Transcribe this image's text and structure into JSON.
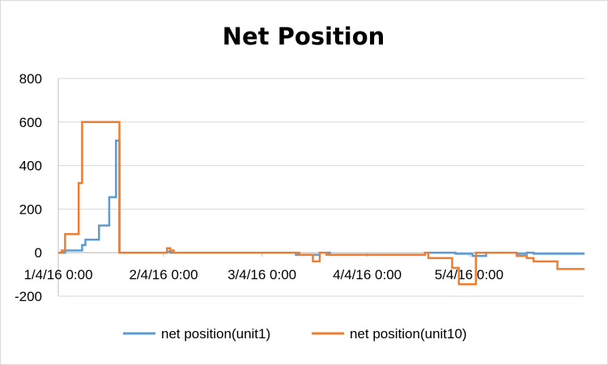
{
  "chart_data": {
    "type": "line",
    "title": "Net Position",
    "xlabel": "",
    "ylabel": "",
    "xlim": [
      "2016-01-04",
      "2016-06-07"
    ],
    "ylim": [
      -200,
      800
    ],
    "y_ticks": [
      -200,
      0,
      200,
      400,
      600,
      800
    ],
    "x_ticks": [
      {
        "date": "2016-01-04",
        "label": "1/4/16 0:00"
      },
      {
        "date": "2016-02-04",
        "label": "2/4/16 0:00"
      },
      {
        "date": "2016-03-04",
        "label": "3/4/16 0:00"
      },
      {
        "date": "2016-04-04",
        "label": "4/4/16 0:00"
      },
      {
        "date": "2016-05-04",
        "label": "5/4/16 0:00"
      }
    ],
    "grid": true,
    "legend_position": "bottom",
    "series": [
      {
        "name": "net position(unit1)",
        "color": "#5b9bd5",
        "step": true,
        "x": [
          "2016-01-04",
          "2016-01-06",
          "2016-01-11",
          "2016-01-12",
          "2016-01-13",
          "2016-01-16",
          "2016-01-19",
          "2016-01-21",
          "2016-01-22",
          "2016-01-23",
          "2016-02-05",
          "2016-02-06",
          "2016-03-10",
          "2016-03-14",
          "2016-03-21",
          "2016-03-24",
          "2016-04-21",
          "2016-04-30",
          "2016-05-05",
          "2016-05-09",
          "2016-05-18",
          "2016-05-21",
          "2016-05-23",
          "2016-06-07"
        ],
        "y": [
          0,
          10,
          35,
          60,
          60,
          125,
          255,
          515,
          0,
          0,
          5,
          0,
          0,
          -10,
          0,
          -10,
          0,
          -5,
          -15,
          0,
          -5,
          0,
          -5,
          -5
        ]
      },
      {
        "name": "net position(unit10)",
        "color": "#ed7d31",
        "step": true,
        "x": [
          "2016-01-04",
          "2016-01-05",
          "2016-01-06",
          "2016-01-10",
          "2016-01-11",
          "2016-01-21",
          "2016-01-22",
          "2016-02-05",
          "2016-02-06",
          "2016-02-07",
          "2016-03-10",
          "2016-03-15",
          "2016-03-19",
          "2016-03-21",
          "2016-03-23",
          "2016-04-21",
          "2016-04-22",
          "2016-04-29",
          "2016-05-01",
          "2016-05-06",
          "2016-05-07",
          "2016-05-18",
          "2016-05-21",
          "2016-05-23",
          "2016-05-30",
          "2016-06-07"
        ],
        "y": [
          0,
          10,
          85,
          320,
          600,
          600,
          0,
          20,
          10,
          0,
          0,
          -10,
          -40,
          0,
          -10,
          0,
          -25,
          -70,
          -145,
          0,
          0,
          -15,
          -25,
          -40,
          -75,
          -75
        ]
      }
    ]
  }
}
